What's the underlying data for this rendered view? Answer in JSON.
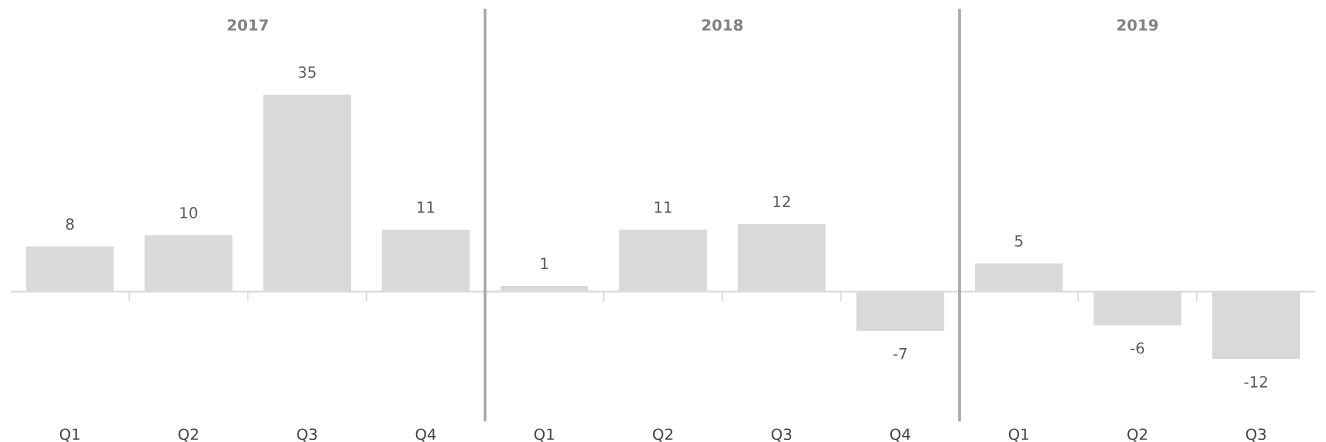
{
  "chart_data": [
    {
      "type": "bar",
      "title": "2017",
      "categories": [
        "Q1",
        "Q2",
        "Q3",
        "Q4"
      ],
      "values": [
        8,
        10,
        35,
        11
      ],
      "color": "#d9d9d9",
      "data_labels": true
    },
    {
      "type": "bar",
      "title": "2018",
      "categories": [
        "Q1",
        "Q2",
        "Q3",
        "Q4"
      ],
      "values": [
        1,
        11,
        12,
        -7
      ],
      "color": "#d9d9d9",
      "data_labels": true
    },
    {
      "type": "bar",
      "title": "2019",
      "categories": [
        "Q1",
        "Q2",
        "Q3"
      ],
      "values": [
        5,
        -6,
        -12
      ],
      "color": "#d9d9d9",
      "data_labels": true
    }
  ]
}
